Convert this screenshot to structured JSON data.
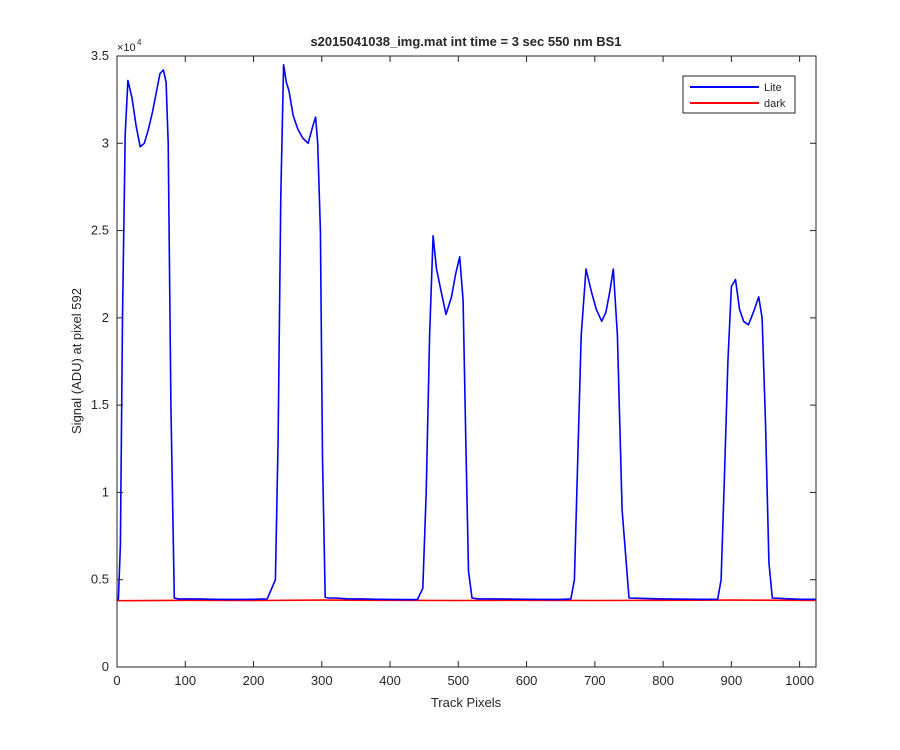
{
  "chart_data": {
    "type": "line",
    "title": "s2015041038_img.mat int time = 3 sec  550 nm BS1",
    "xlabel": "Track Pixels",
    "ylabel": "Signal (ADU) at pixel 592",
    "y_exponent_label": "×10",
    "y_exponent": "4",
    "xlim": [
      0,
      1024
    ],
    "ylim": [
      0,
      35000
    ],
    "xticks": [
      0,
      100,
      200,
      300,
      400,
      500,
      600,
      700,
      800,
      900,
      1000
    ],
    "yticks": [
      0,
      5000,
      10000,
      15000,
      20000,
      25000,
      30000,
      35000
    ],
    "ytick_labels": [
      "0",
      "0.5",
      "1",
      "1.5",
      "2",
      "2.5",
      "3",
      "3.5"
    ],
    "grid": false,
    "legend_position": "top-right",
    "series": [
      {
        "name": "Lite",
        "color": "#0000ff",
        "x": [
          0,
          2,
          5,
          8,
          12,
          16,
          22,
          28,
          34,
          40,
          46,
          52,
          58,
          63,
          68,
          72,
          75,
          79,
          84,
          90,
          100,
          120,
          140,
          160,
          180,
          200,
          220,
          232,
          236,
          240,
          244,
          248,
          252,
          258,
          265,
          272,
          280,
          287,
          291,
          294,
          298,
          301,
          305,
          310,
          320,
          340,
          360,
          380,
          400,
          420,
          440,
          448,
          453,
          458,
          463,
          468,
          475,
          482,
          490,
          496,
          502,
          507,
          511,
          515,
          520,
          530,
          560,
          600,
          630,
          650,
          665,
          670,
          675,
          680,
          687,
          695,
          702,
          710,
          716,
          722,
          727,
          733,
          740,
          750,
          800,
          850,
          880,
          885,
          890,
          895,
          900,
          906,
          912,
          918,
          925,
          933,
          940,
          945,
          950,
          955,
          960,
          1000,
          1024
        ],
        "y": [
          3850,
          3900,
          7000,
          20000,
          30500,
          33600,
          32600,
          31000,
          29800,
          30000,
          30800,
          31800,
          33000,
          34000,
          34200,
          33500,
          30000,
          15000,
          3950,
          3900,
          3900,
          3900,
          3880,
          3870,
          3870,
          3880,
          3900,
          5000,
          13000,
          27000,
          34500,
          33500,
          33000,
          31600,
          30800,
          30300,
          30000,
          31000,
          31500,
          30000,
          25000,
          12000,
          4000,
          3950,
          3950,
          3900,
          3900,
          3880,
          3870,
          3860,
          3860,
          4500,
          10000,
          19000,
          24700,
          22800,
          21500,
          20200,
          21200,
          22500,
          23500,
          21000,
          13000,
          5500,
          3950,
          3900,
          3900,
          3880,
          3870,
          3870,
          3900,
          5000,
          12000,
          19000,
          22800,
          21500,
          20500,
          19800,
          20300,
          21500,
          22800,
          19000,
          9000,
          3950,
          3900,
          3880,
          3880,
          5000,
          11000,
          17500,
          21800,
          22200,
          20500,
          19800,
          19600,
          20400,
          21200,
          20000,
          14000,
          6000,
          3950,
          3880,
          3880
        ]
      },
      {
        "name": "dark",
        "color": "#ff0000",
        "x": [
          0,
          100,
          200,
          300,
          400,
          500,
          600,
          700,
          800,
          900,
          1000,
          1024
        ],
        "y": [
          3800,
          3820,
          3810,
          3830,
          3820,
          3810,
          3820,
          3810,
          3820,
          3830,
          3820,
          3810
        ]
      }
    ]
  }
}
